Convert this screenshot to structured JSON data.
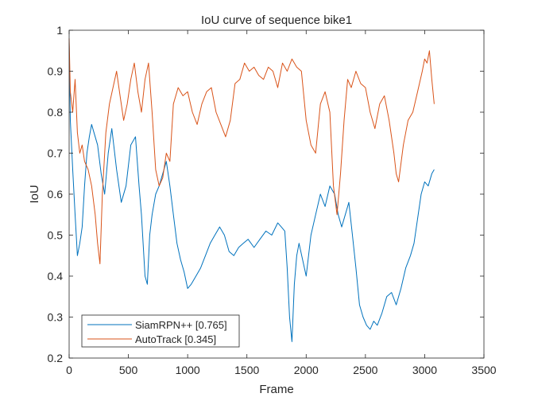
{
  "chart_data": {
    "type": "line",
    "title": "IoU curve of sequence bike1",
    "xlabel": "Frame",
    "ylabel": "IoU",
    "xlim": [
      0,
      3500
    ],
    "ylim": [
      0.2,
      1
    ],
    "xticks": [
      0,
      500,
      1000,
      1500,
      2000,
      2500,
      3000,
      3500
    ],
    "xtick_labels": [
      "0",
      "500",
      "1000",
      "1500",
      "2000",
      "2500",
      "3000",
      "3500"
    ],
    "yticks": [
      0.2,
      0.3,
      0.4,
      0.5,
      0.6,
      0.7,
      0.8,
      0.9,
      1
    ],
    "ytick_labels": [
      "0.2",
      "0.3",
      "0.4",
      "0.5",
      "0.6",
      "0.7",
      "0.8",
      "0.9",
      "1"
    ],
    "grid": false,
    "legend_position": "bottom-left",
    "series": [
      {
        "name": "SiamRPN++ [0.765]",
        "color": "#0072BD",
        "x": [
          0,
          10,
          30,
          50,
          70,
          90,
          110,
          130,
          150,
          170,
          190,
          210,
          240,
          270,
          300,
          330,
          360,
          400,
          440,
          480,
          520,
          560,
          590,
          610,
          640,
          660,
          680,
          700,
          730,
          760,
          790,
          820,
          850,
          880,
          910,
          940,
          970,
          1000,
          1030,
          1070,
          1110,
          1150,
          1190,
          1230,
          1270,
          1310,
          1350,
          1390,
          1430,
          1470,
          1510,
          1560,
          1610,
          1660,
          1710,
          1760,
          1790,
          1820,
          1840,
          1860,
          1880,
          1900,
          1920,
          1940,
          1970,
          2000,
          2040,
          2080,
          2120,
          2160,
          2200,
          2240,
          2270,
          2300,
          2330,
          2360,
          2390,
          2420,
          2450,
          2480,
          2510,
          2540,
          2570,
          2600,
          2640,
          2680,
          2720,
          2760,
          2800,
          2840,
          2880,
          2910,
          2940,
          2970,
          3000,
          3030,
          3060,
          3080
        ],
        "y": [
          0.97,
          0.78,
          0.66,
          0.55,
          0.45,
          0.48,
          0.52,
          0.62,
          0.7,
          0.74,
          0.77,
          0.75,
          0.72,
          0.65,
          0.6,
          0.7,
          0.76,
          0.66,
          0.58,
          0.62,
          0.72,
          0.74,
          0.62,
          0.55,
          0.4,
          0.38,
          0.5,
          0.55,
          0.6,
          0.62,
          0.65,
          0.68,
          0.62,
          0.55,
          0.48,
          0.44,
          0.41,
          0.37,
          0.38,
          0.4,
          0.42,
          0.45,
          0.48,
          0.5,
          0.52,
          0.5,
          0.46,
          0.45,
          0.47,
          0.48,
          0.49,
          0.47,
          0.49,
          0.51,
          0.5,
          0.53,
          0.52,
          0.51,
          0.42,
          0.3,
          0.24,
          0.38,
          0.45,
          0.48,
          0.44,
          0.4,
          0.5,
          0.55,
          0.6,
          0.57,
          0.62,
          0.6,
          0.55,
          0.52,
          0.55,
          0.58,
          0.5,
          0.42,
          0.33,
          0.3,
          0.28,
          0.27,
          0.29,
          0.28,
          0.31,
          0.35,
          0.36,
          0.33,
          0.37,
          0.42,
          0.45,
          0.48,
          0.54,
          0.6,
          0.63,
          0.62,
          0.65,
          0.66
        ]
      },
      {
        "name": "AutoTrack [0.345]",
        "color": "#D95319",
        "x": [
          0,
          10,
          30,
          50,
          70,
          90,
          110,
          130,
          160,
          190,
          220,
          240,
          260,
          280,
          310,
          340,
          370,
          400,
          430,
          460,
          490,
          520,
          550,
          580,
          610,
          640,
          670,
          700,
          730,
          760,
          790,
          820,
          850,
          880,
          920,
          960,
          1000,
          1040,
          1080,
          1120,
          1160,
          1200,
          1240,
          1280,
          1320,
          1360,
          1400,
          1440,
          1480,
          1520,
          1560,
          1600,
          1640,
          1680,
          1720,
          1760,
          1800,
          1840,
          1880,
          1920,
          1960,
          2000,
          2040,
          2080,
          2120,
          2160,
          2200,
          2230,
          2260,
          2290,
          2320,
          2350,
          2380,
          2420,
          2460,
          2500,
          2540,
          2580,
          2620,
          2660,
          2700,
          2740,
          2760,
          2780,
          2820,
          2860,
          2900,
          2940,
          2980,
          3000,
          3020,
          3040,
          3060,
          3080
        ],
        "y": [
          0.98,
          0.85,
          0.8,
          0.88,
          0.75,
          0.7,
          0.72,
          0.68,
          0.66,
          0.62,
          0.55,
          0.48,
          0.43,
          0.6,
          0.75,
          0.82,
          0.86,
          0.9,
          0.84,
          0.78,
          0.82,
          0.88,
          0.92,
          0.85,
          0.8,
          0.88,
          0.92,
          0.8,
          0.66,
          0.62,
          0.64,
          0.7,
          0.68,
          0.82,
          0.86,
          0.84,
          0.85,
          0.8,
          0.77,
          0.82,
          0.85,
          0.86,
          0.8,
          0.77,
          0.74,
          0.78,
          0.87,
          0.88,
          0.92,
          0.9,
          0.91,
          0.89,
          0.88,
          0.91,
          0.9,
          0.86,
          0.92,
          0.9,
          0.93,
          0.91,
          0.9,
          0.78,
          0.72,
          0.7,
          0.82,
          0.85,
          0.8,
          0.62,
          0.55,
          0.65,
          0.78,
          0.88,
          0.86,
          0.9,
          0.87,
          0.86,
          0.8,
          0.76,
          0.82,
          0.84,
          0.78,
          0.7,
          0.65,
          0.63,
          0.72,
          0.78,
          0.8,
          0.85,
          0.9,
          0.93,
          0.92,
          0.95,
          0.88,
          0.82
        ]
      }
    ]
  }
}
